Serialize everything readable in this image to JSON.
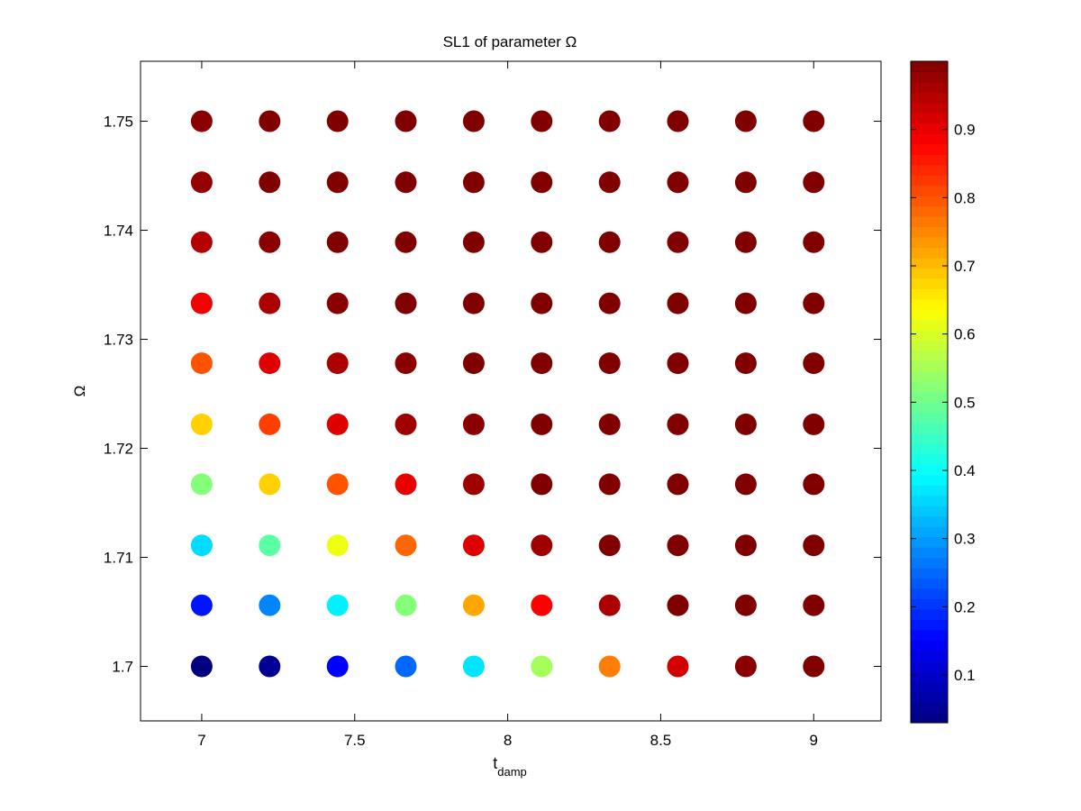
{
  "chart_data": {
    "type": "scatter",
    "title": "SL1 of parameter Ω",
    "xlabel": {
      "base": "t",
      "sub": "damp"
    },
    "ylabel": "Ω",
    "xlim": [
      6.8,
      9.22
    ],
    "ylim": [
      1.695,
      1.7555
    ],
    "xticks": [
      7,
      7.5,
      8,
      8.5,
      9
    ],
    "xtick_labels": [
      "7",
      "7.5",
      "8",
      "8.5",
      "9"
    ],
    "yticks": [
      1.7,
      1.71,
      1.72,
      1.73,
      1.74,
      1.75
    ],
    "ytick_labels": [
      "1.7",
      "1.71",
      "1.72",
      "1.73",
      "1.74",
      "1.75"
    ],
    "x": [
      7.0,
      7.222,
      7.444,
      7.667,
      7.889,
      8.111,
      8.333,
      8.556,
      8.778,
      9.0
    ],
    "y": [
      1.7,
      1.7056,
      1.7111,
      1.7167,
      1.7222,
      1.7278,
      1.7333,
      1.7389,
      1.7444,
      1.75
    ],
    "values": [
      [
        0.03,
        0.05,
        0.15,
        0.25,
        0.37,
        0.55,
        0.76,
        0.92,
        0.99,
        1.0
      ],
      [
        0.17,
        0.28,
        0.38,
        0.52,
        0.72,
        0.88,
        0.96,
        1.0,
        1.0,
        1.0
      ],
      [
        0.36,
        0.48,
        0.62,
        0.78,
        0.91,
        0.97,
        1.0,
        1.0,
        1.0,
        1.0
      ],
      [
        0.52,
        0.68,
        0.8,
        0.9,
        0.97,
        1.0,
        1.0,
        1.0,
        1.0,
        1.0
      ],
      [
        0.68,
        0.82,
        0.91,
        0.97,
        0.99,
        1.0,
        1.0,
        1.0,
        1.0,
        1.0
      ],
      [
        0.8,
        0.91,
        0.96,
        0.99,
        1.0,
        1.0,
        1.0,
        1.0,
        1.0,
        1.0
      ],
      [
        0.89,
        0.96,
        0.99,
        1.0,
        1.0,
        1.0,
        1.0,
        1.0,
        1.0,
        1.0
      ],
      [
        0.95,
        0.99,
        1.0,
        1.0,
        1.0,
        1.0,
        1.0,
        1.0,
        1.0,
        1.0
      ],
      [
        0.98,
        1.0,
        1.0,
        1.0,
        1.0,
        1.0,
        1.0,
        1.0,
        1.0,
        1.0
      ],
      [
        0.99,
        1.0,
        1.0,
        1.0,
        1.0,
        1.0,
        1.0,
        1.0,
        1.0,
        1.0
      ]
    ],
    "colorbar": {
      "colormap": "jet",
      "clim": [
        0.03,
        1.0
      ],
      "ticks": [
        0.1,
        0.2,
        0.3,
        0.4,
        0.5,
        0.6,
        0.7,
        0.8,
        0.9
      ],
      "tick_labels": [
        "0.1",
        "0.2",
        "0.3",
        "0.4",
        "0.5",
        "0.6",
        "0.7",
        "0.8",
        "0.9"
      ]
    },
    "grid": false,
    "legend": "none",
    "colors": {
      "background": "#ffffff",
      "axes": "#000000"
    }
  }
}
